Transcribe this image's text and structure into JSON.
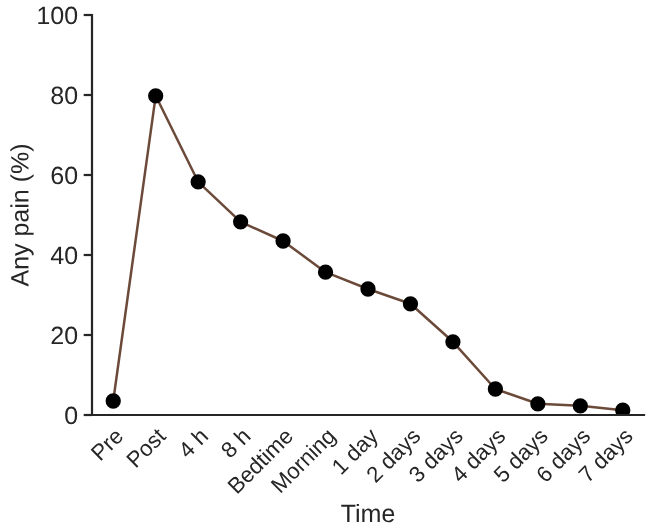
{
  "chart_data": {
    "type": "line",
    "xlabel": "Time",
    "ylabel": "Any pain (%)",
    "categories": [
      "Pre",
      "Post",
      "4 h",
      "8 h",
      "Bedtime",
      "Morning",
      "1 day",
      "2 days",
      "3 days",
      "4 days",
      "5 days",
      "6 days",
      "7 days"
    ],
    "series": [
      {
        "color": "#6b4a3a",
        "values": [
          3.5,
          79.8,
          58.3,
          48.3,
          43.5,
          35.7,
          31.5,
          27.8,
          18.3,
          6.5,
          2.8,
          2.3,
          1.2
        ]
      }
    ],
    "ylim": [
      0,
      100
    ],
    "yticks": [
      0,
      20,
      40,
      60,
      80,
      100
    ],
    "marker": "circle",
    "line_style": "solid",
    "grid": false,
    "legend": false
  }
}
